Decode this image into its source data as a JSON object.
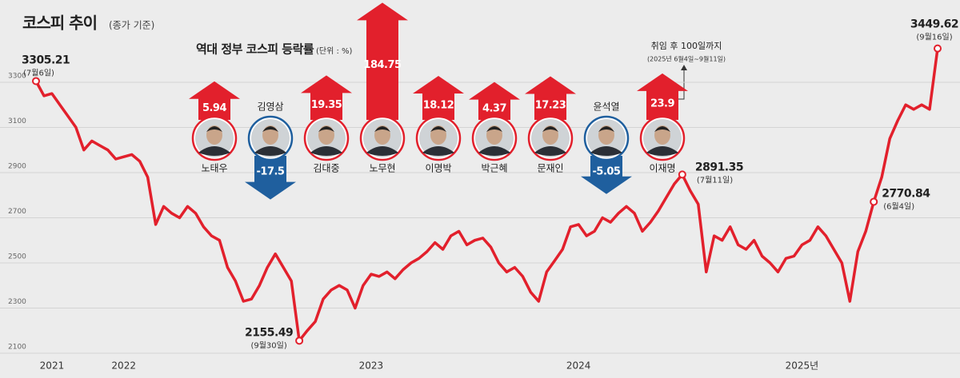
{
  "chart_data": [
    {
      "type": "line",
      "title": "코스피 추이",
      "subtitle": "(종가 기준)",
      "color": "#e2202c",
      "categories": [
        null,
        null,
        "2021",
        null,
        null,
        null,
        null,
        null,
        null,
        null,
        null,
        "2022",
        null,
        null,
        null,
        null,
        null,
        null,
        null,
        null,
        null,
        null,
        null,
        null,
        null,
        null,
        null,
        null,
        null,
        null,
        null,
        null,
        null,
        null,
        null,
        null,
        null,
        null,
        null,
        null,
        null,
        null,
        "2023",
        null,
        null,
        null,
        null,
        null,
        null,
        null,
        null,
        null,
        null,
        null,
        null,
        null,
        null,
        null,
        null,
        null,
        null,
        null,
        null,
        null,
        null,
        null,
        null,
        null,
        "2024",
        null,
        null,
        null,
        null,
        null,
        null,
        null,
        null,
        null,
        null,
        null,
        null,
        null,
        null,
        null,
        null,
        null,
        null,
        null,
        null,
        null,
        null,
        null,
        null,
        null,
        null,
        null,
        "2025년",
        null,
        null,
        null,
        null,
        null,
        null,
        null,
        null,
        null,
        null,
        null,
        null,
        null,
        null,
        null,
        null,
        null
      ],
      "values": [
        3305.21,
        3240,
        3250,
        3200,
        3150,
        3100,
        3000,
        3040,
        3020,
        3000,
        2960,
        2970,
        2980,
        2950,
        2880,
        2670,
        2750,
        2720,
        2700,
        2750,
        2720,
        2660,
        2620,
        2600,
        2480,
        2420,
        2330,
        2340,
        2400,
        2480,
        2540,
        2480,
        2420,
        2155.49,
        2200,
        2240,
        2340,
        2380,
        2400,
        2380,
        2300,
        2400,
        2450,
        2440,
        2460,
        2430,
        2470,
        2500,
        2520,
        2550,
        2590,
        2560,
        2620,
        2640,
        2580,
        2600,
        2610,
        2570,
        2500,
        2460,
        2480,
        2440,
        2370,
        2330,
        2460,
        2510,
        2560,
        2660,
        2670,
        2620,
        2640,
        2700,
        2680,
        2720,
        2750,
        2720,
        2640,
        2680,
        2730,
        2790,
        2850,
        2891.35,
        2820,
        2760,
        2460,
        2620,
        2600,
        2660,
        2580,
        2560,
        2600,
        2530,
        2500,
        2460,
        2520,
        2530,
        2580,
        2600,
        2660,
        2620,
        2560,
        2500,
        2330,
        2550,
        2640,
        2770.84,
        2880,
        3050,
        3130,
        3200,
        3180,
        3200,
        3180,
        3449.62
      ],
      "ylim": [
        2100,
        3590
      ],
      "yticks": [
        2100,
        2300,
        2500,
        2700,
        2900,
        3100,
        3300
      ],
      "grid": true,
      "annotations": [
        {
          "value": 3305.21,
          "date": "(7월6일)"
        },
        {
          "value": 2155.49,
          "date": "(9월30일)"
        },
        {
          "value": 2891.35,
          "date": "(7월11일)"
        },
        {
          "value": 2770.84,
          "date": "(6월4일)"
        },
        {
          "value": 3449.62,
          "date": "(9월16일)"
        }
      ]
    },
    {
      "type": "arrow",
      "title": "역대 정부 코스피 등락률",
      "unit": "(단위 : %)",
      "up_color": "#e2202c",
      "down_color": "#1f5f9e",
      "categories": [
        "노태우",
        "김영삼",
        "김대중",
        "노무현",
        "이명박",
        "박근혜",
        "문재인",
        "윤석열",
        "이재명"
      ],
      "values": [
        5.94,
        -17.5,
        19.35,
        184.75,
        18.12,
        4.37,
        17.23,
        -5.05,
        23.9
      ],
      "note": "취임 후 100일까지",
      "note_detail": "(2025년 6월4일~9월11일)"
    }
  ]
}
